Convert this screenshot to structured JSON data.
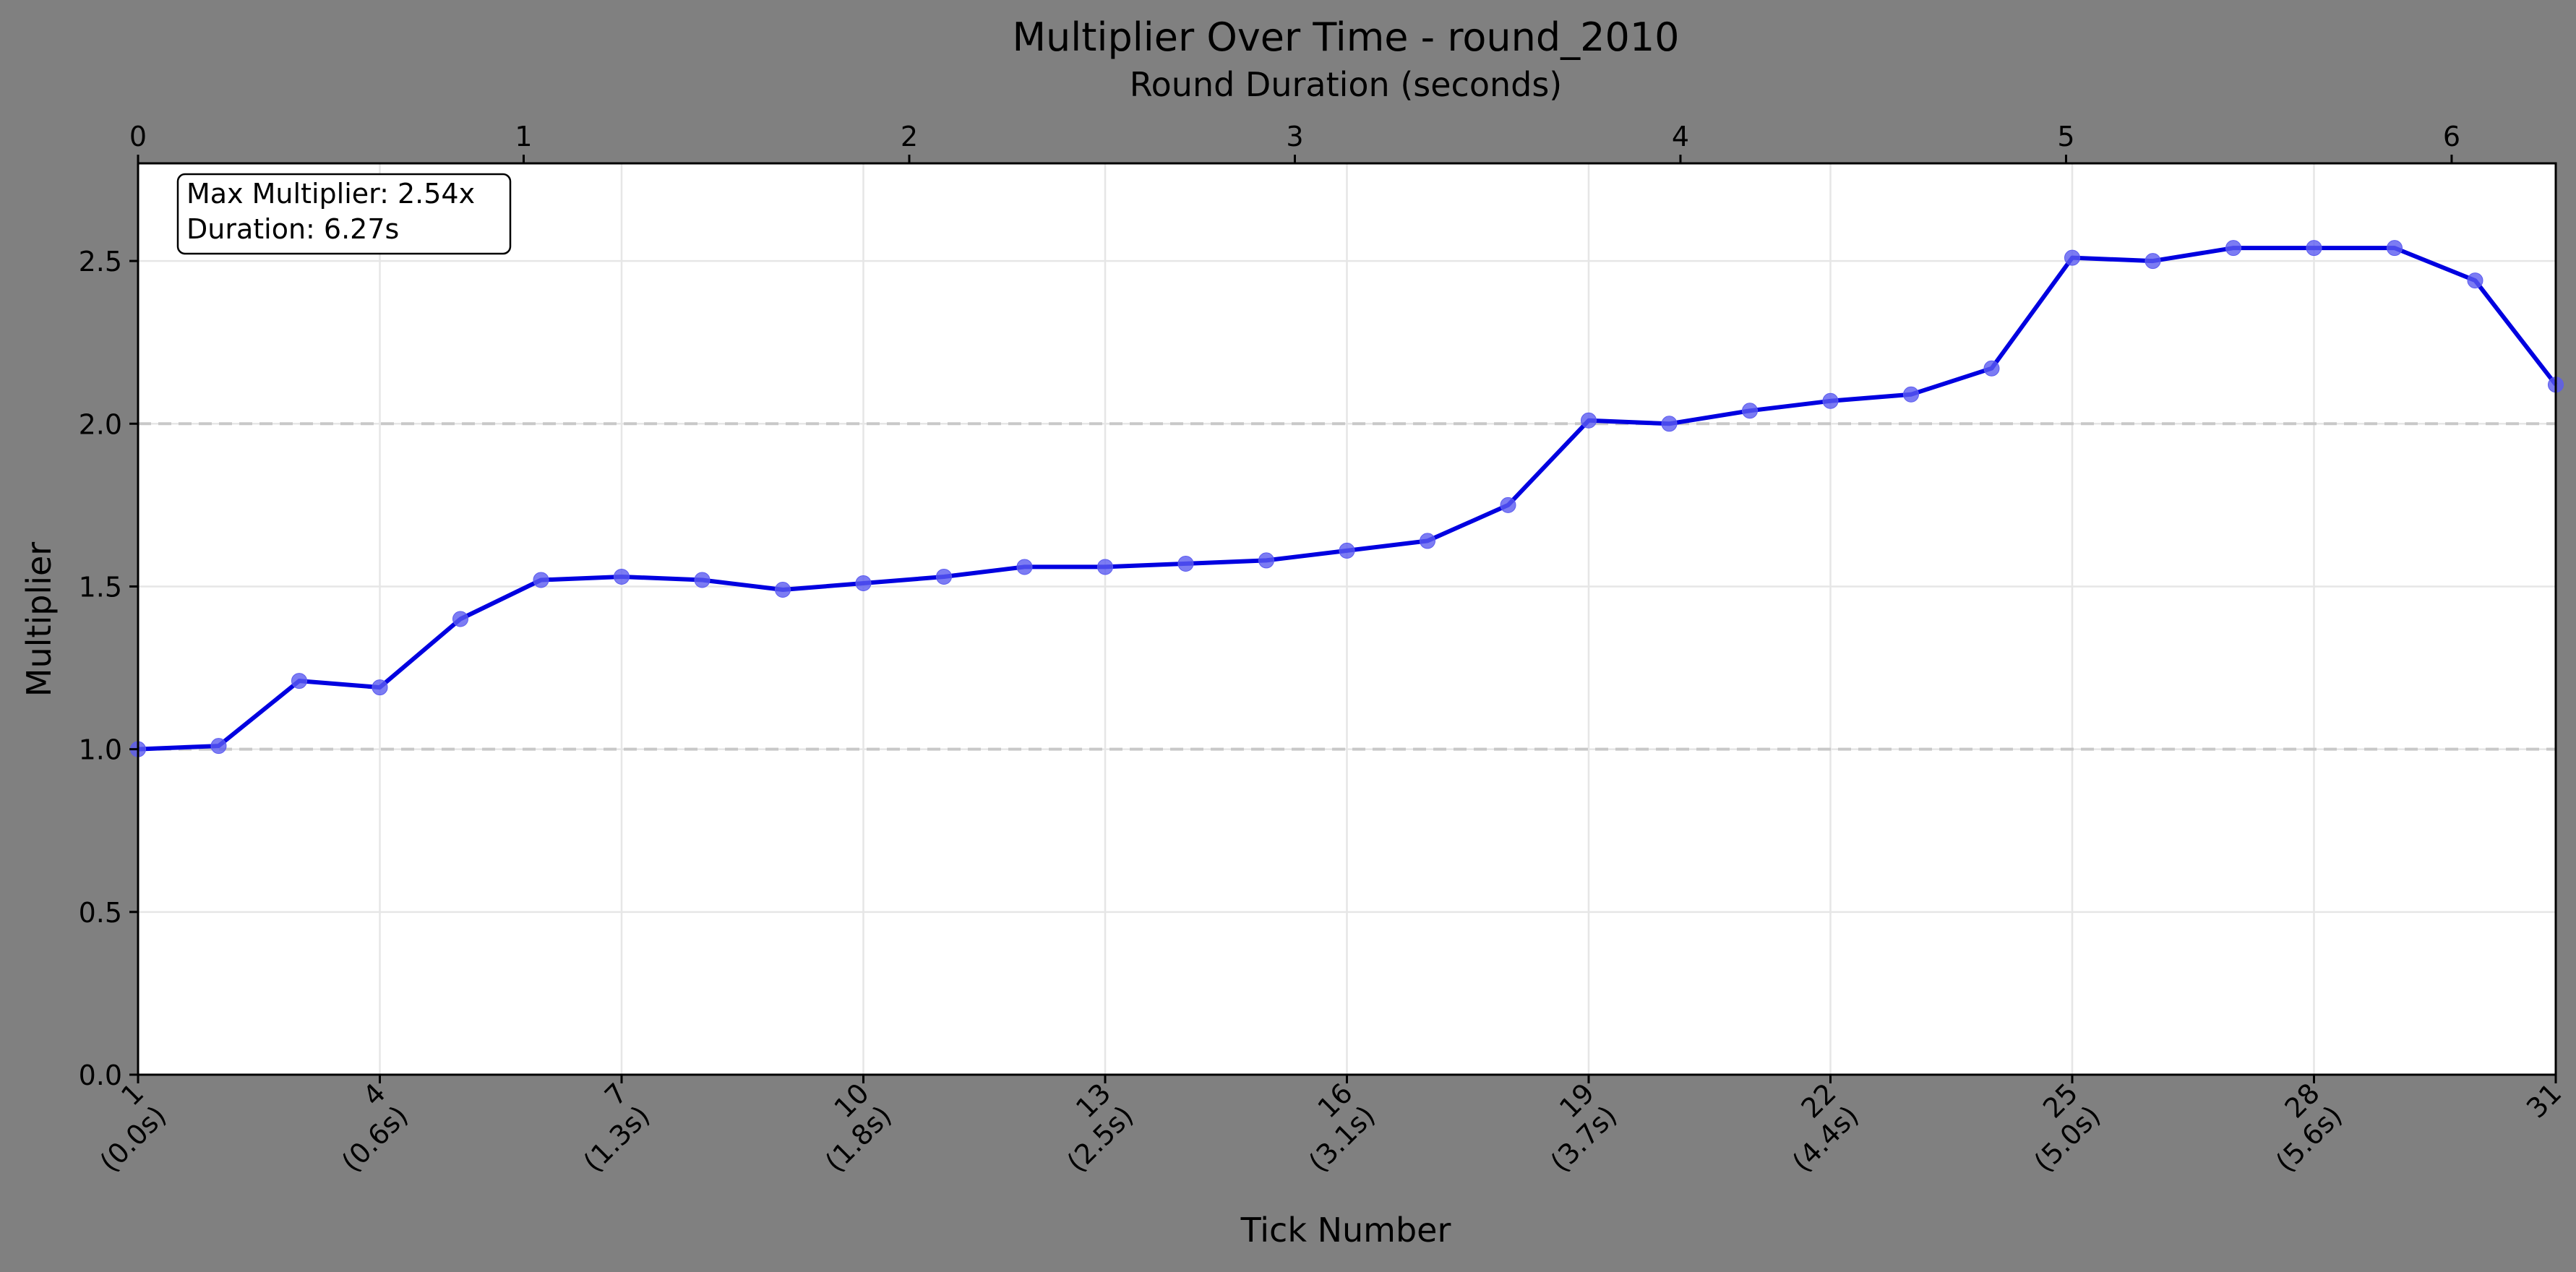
{
  "chart_data": {
    "type": "line",
    "title": "Multiplier Over Time - round_2010",
    "xlabel": "Tick Number",
    "ylabel": "Multiplier",
    "top_xlabel": "Round Duration (seconds)",
    "x": [
      1,
      2,
      3,
      4,
      5,
      6,
      7,
      8,
      9,
      10,
      11,
      12,
      13,
      14,
      15,
      16,
      17,
      18,
      19,
      20,
      21,
      22,
      23,
      24,
      25,
      26,
      27,
      28,
      29,
      30,
      31
    ],
    "y": [
      1.0,
      1.01,
      1.21,
      1.19,
      1.4,
      1.52,
      1.53,
      1.52,
      1.49,
      1.51,
      1.53,
      1.56,
      1.56,
      1.57,
      1.58,
      1.61,
      1.64,
      1.75,
      2.01,
      2.0,
      2.04,
      2.07,
      2.09,
      2.17,
      2.51,
      2.5,
      2.54,
      2.54,
      2.54,
      2.44,
      2.12
    ],
    "xlim": [
      1,
      31
    ],
    "ylim": [
      0,
      2.8
    ],
    "yticks": [
      "0.0",
      "0.5",
      "1.0",
      "1.5",
      "2.0",
      "2.5"
    ],
    "ytick_values": [
      0,
      0.5,
      1.0,
      1.5,
      2.0,
      2.5
    ],
    "xticks": [
      {
        "value": 1,
        "line1": "1",
        "line2": "(0.0s)"
      },
      {
        "value": 4,
        "line1": "4",
        "line2": "(0.6s)"
      },
      {
        "value": 7,
        "line1": "7",
        "line2": "(1.3s)"
      },
      {
        "value": 10,
        "line1": "10",
        "line2": "(1.8s)"
      },
      {
        "value": 13,
        "line1": "13",
        "line2": "(2.5s)"
      },
      {
        "value": 16,
        "line1": "16",
        "line2": "(3.1s)"
      },
      {
        "value": 19,
        "line1": "19",
        "line2": "(3.7s)"
      },
      {
        "value": 22,
        "line1": "22",
        "line2": "(4.4s)"
      },
      {
        "value": 25,
        "line1": "25",
        "line2": "(5.0s)"
      },
      {
        "value": 28,
        "line1": "28",
        "line2": "(5.6s)"
      },
      {
        "value": 31,
        "line1": "31",
        "line2": ""
      }
    ],
    "top_xlim": [
      0,
      6.27
    ],
    "top_xticks": [
      "0",
      "1",
      "2",
      "3",
      "4",
      "5",
      "6"
    ],
    "top_xtick_values": [
      0,
      1,
      2,
      3,
      4,
      5,
      6
    ],
    "reference_lines": [
      1.0,
      2.0
    ],
    "annotation": {
      "line1": "Max Multiplier: 2.54x",
      "line2": "Duration: 6.27s",
      "position": "top-left"
    },
    "grid": true,
    "legend": "none",
    "line_color": "#0000e0",
    "marker_color": "#5b5bf0",
    "reference_line_color": "#c8c8c8",
    "grid_color": "#e6e6e6",
    "plot_background": "#ffffff",
    "figure_background": "#808080"
  }
}
